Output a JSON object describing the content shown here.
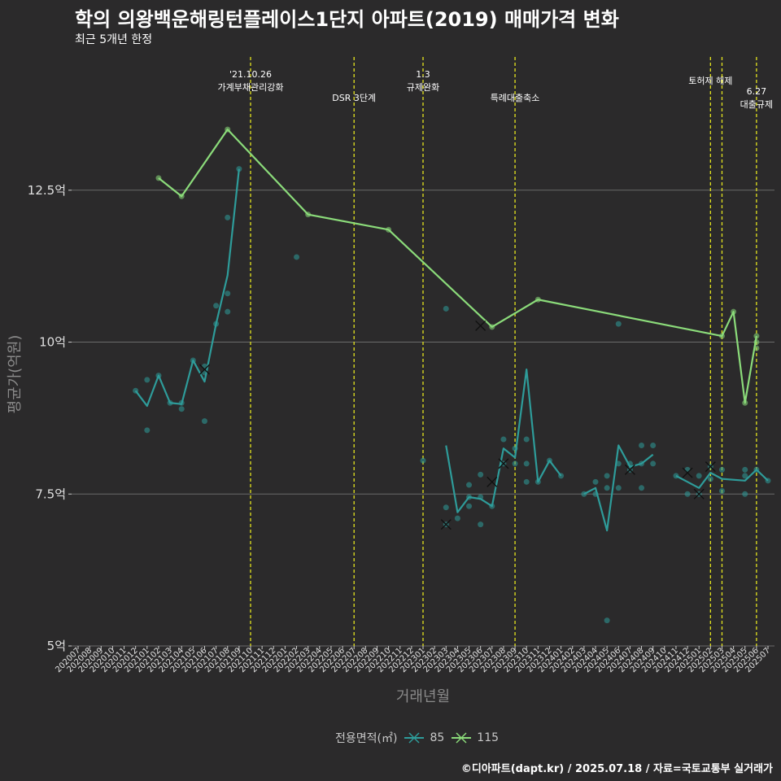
{
  "header": {
    "title": "학의 의왕백운해링턴플레이스1단지 아파트(2019) 매매가격 변화",
    "subtitle": "최근 5개년 한정"
  },
  "caption": "©디아파트(dapt.kr) / 2025.07.18 / 자료=국토교통부 실거래가",
  "legend": {
    "title": "전용면적(㎡)",
    "items": [
      "85",
      "115"
    ]
  },
  "colors": {
    "s85": "#2e9c9a",
    "s115": "#8bdb7a",
    "vline": "#e5e51e",
    "grid": "#6b6b6b",
    "background": "#2b2a2b"
  },
  "chart_data": {
    "type": "line",
    "xlabel": "거래년월",
    "ylabel": "평균가(억원)",
    "x_categories": [
      "202007",
      "202008",
      "202009",
      "202010",
      "202011",
      "202012",
      "202101",
      "202102",
      "202103",
      "202104",
      "202105",
      "202106",
      "202107",
      "202108",
      "202109",
      "202110",
      "202111",
      "202112",
      "202201",
      "202202",
      "202203",
      "202204",
      "202205",
      "202206",
      "202207",
      "202208",
      "202209",
      "202210",
      "202211",
      "202212",
      "202301",
      "202302",
      "202303",
      "202304",
      "202305",
      "202306",
      "202307",
      "202308",
      "202309",
      "202310",
      "202311",
      "202312",
      "202401",
      "202402",
      "202403",
      "202404",
      "202405",
      "202406",
      "202407",
      "202408",
      "202409",
      "202410",
      "202411",
      "202412",
      "202501",
      "202502",
      "202503",
      "202504",
      "202505",
      "202506",
      "202507"
    ],
    "y_ticks": [
      {
        "value": 5,
        "label": "5억"
      },
      {
        "value": 7.5,
        "label": "7.5억"
      },
      {
        "value": 10,
        "label": "10억"
      },
      {
        "value": 12.5,
        "label": "12.5억"
      }
    ],
    "ylim": [
      5,
      14.8
    ],
    "vlines": [
      {
        "x": "202110",
        "lines": [
          "'21.10.26",
          "가계부채관리강화"
        ],
        "row": 0
      },
      {
        "x": "202207",
        "lines": [
          "DSR 3단계"
        ],
        "row": 1
      },
      {
        "x": "202301",
        "lines": [
          "1.3",
          "규제완화"
        ],
        "row": 0
      },
      {
        "x": "202309",
        "lines": [
          "특례대출축소"
        ],
        "row": 1
      },
      {
        "x": "202502",
        "lines": [
          "토허제 해제"
        ],
        "row": 0
      },
      {
        "x": "202503",
        "lines": [],
        "row": 0
      },
      {
        "x": "202506",
        "lines": [
          "6.27",
          "대출규제"
        ],
        "row": 2
      }
    ],
    "series": [
      {
        "name": "85",
        "line": [
          [
            "202012",
            9.2
          ],
          [
            "202101",
            8.95
          ],
          [
            "202102",
            9.45
          ],
          [
            "202103",
            9.0
          ],
          [
            "202104",
            8.98
          ],
          [
            "202105",
            9.7
          ],
          [
            "202106",
            9.35
          ],
          [
            "202107",
            10.3
          ],
          [
            "202108",
            11.1
          ],
          [
            "202109",
            12.85
          ],
          null,
          [
            "202303",
            8.3
          ],
          [
            "202304",
            7.2
          ],
          [
            "202305",
            7.45
          ],
          [
            "202306",
            7.42
          ],
          [
            "202307",
            7.3
          ],
          [
            "202308",
            8.25
          ],
          [
            "202309",
            8.1
          ],
          [
            "202310",
            9.55
          ],
          [
            "202311",
            7.7
          ],
          [
            "202312",
            8.05
          ],
          [
            "202401",
            7.8
          ],
          null,
          [
            "202403",
            7.5
          ],
          [
            "202404",
            7.6
          ],
          [
            "202405",
            6.9
          ],
          [
            "202406",
            8.3
          ],
          [
            "202407",
            7.95
          ],
          [
            "202408",
            8.0
          ],
          [
            "202409",
            8.15
          ],
          null,
          [
            "202411",
            7.8
          ],
          [
            "202412",
            7.7
          ],
          [
            "202501",
            7.6
          ],
          [
            "202502",
            7.85
          ],
          [
            "202503",
            7.75
          ],
          [
            "202505",
            7.72
          ],
          [
            "202506",
            7.9
          ],
          [
            "202507",
            7.72
          ]
        ],
        "points": [
          [
            "202012",
            9.2
          ],
          [
            "202101",
            9.38
          ],
          [
            "202101",
            8.55
          ],
          [
            "202102",
            9.45
          ],
          [
            "202103",
            9.0
          ],
          [
            "202104",
            8.9
          ],
          [
            "202104",
            9.0
          ],
          [
            "202105",
            9.7
          ],
          [
            "202106",
            8.7
          ],
          [
            "202106",
            9.6
          ],
          [
            "202106",
            9.5
          ],
          [
            "202107",
            10.3
          ],
          [
            "202107",
            10.6
          ],
          [
            "202108",
            12.05
          ],
          [
            "202108",
            10.8
          ],
          [
            "202108",
            10.5
          ],
          [
            "202109",
            12.85
          ],
          [
            "202202",
            11.4
          ],
          [
            "202301",
            8.05
          ],
          [
            "202303",
            10.55
          ],
          [
            "202303",
            7.28
          ],
          [
            "202303",
            7.0
          ],
          [
            "202304",
            7.1
          ],
          [
            "202305",
            7.65
          ],
          [
            "202305",
            7.45
          ],
          [
            "202305",
            7.3
          ],
          [
            "202306",
            7.82
          ],
          [
            "202306",
            7.0
          ],
          [
            "202306",
            7.45
          ],
          [
            "202307",
            7.3
          ],
          [
            "202308",
            8.4
          ],
          [
            "202308",
            8.0
          ],
          [
            "202309",
            8.25
          ],
          [
            "202309",
            8.0
          ],
          [
            "202310",
            8.4
          ],
          [
            "202310",
            8.0
          ],
          [
            "202310",
            7.7
          ],
          [
            "202311",
            7.7
          ],
          [
            "202312",
            8.05
          ],
          [
            "202401",
            7.8
          ],
          [
            "202403",
            7.5
          ],
          [
            "202404",
            7.7
          ],
          [
            "202404",
            7.5
          ],
          [
            "202405",
            7.8
          ],
          [
            "202405",
            7.6
          ],
          [
            "202405",
            5.42
          ],
          [
            "202406",
            10.3
          ],
          [
            "202406",
            8.0
          ],
          [
            "202406",
            7.6
          ],
          [
            "202407",
            8.0
          ],
          [
            "202407",
            7.9
          ],
          [
            "202408",
            8.3
          ],
          [
            "202408",
            7.6
          ],
          [
            "202408",
            8.0
          ],
          [
            "202409",
            8.3
          ],
          [
            "202409",
            8.0
          ],
          [
            "202411",
            7.8
          ],
          [
            "202412",
            7.9
          ],
          [
            "202412",
            7.5
          ],
          [
            "202501",
            7.5
          ],
          [
            "202501",
            7.8
          ],
          [
            "202502",
            7.95
          ],
          [
            "202502",
            7.75
          ],
          [
            "202503",
            7.9
          ],
          [
            "202503",
            7.55
          ],
          [
            "202505",
            7.9
          ],
          [
            "202505",
            7.8
          ],
          [
            "202505",
            7.5
          ],
          [
            "202506",
            7.9
          ],
          [
            "202507",
            7.72
          ]
        ],
        "crosses": [
          [
            "202106",
            9.55
          ],
          [
            "202303",
            7.0
          ],
          [
            "202307",
            7.7
          ],
          [
            "202308",
            8.0
          ],
          [
            "202407",
            7.9
          ],
          [
            "202412",
            7.85
          ],
          [
            "202501",
            7.5
          ],
          [
            "202502",
            7.95
          ]
        ]
      },
      {
        "name": "115",
        "line": [
          [
            "202102",
            12.7
          ],
          [
            "202104",
            12.4
          ],
          [
            "202108",
            13.5
          ],
          [
            "202203",
            12.1
          ],
          [
            "202210",
            11.85
          ],
          [
            "202307",
            10.25
          ],
          [
            "202311",
            10.7
          ],
          [
            "202503",
            10.1
          ],
          [
            "202504",
            10.5
          ],
          [
            "202505",
            9.0
          ],
          [
            "202506",
            10.1
          ]
        ],
        "points": [
          [
            "202102",
            12.7
          ],
          [
            "202104",
            12.4
          ],
          [
            "202108",
            13.5
          ],
          [
            "202203",
            12.1
          ],
          [
            "202210",
            11.85
          ],
          [
            "202307",
            10.25
          ],
          [
            "202311",
            10.7
          ],
          [
            "202503",
            10.1
          ],
          [
            "202504",
            10.5
          ],
          [
            "202505",
            9.0
          ],
          [
            "202506",
            10.1
          ],
          [
            "202506",
            10.0
          ],
          [
            "202506",
            9.9
          ]
        ],
        "crosses": [
          [
            "202306",
            10.27
          ]
        ]
      }
    ]
  }
}
